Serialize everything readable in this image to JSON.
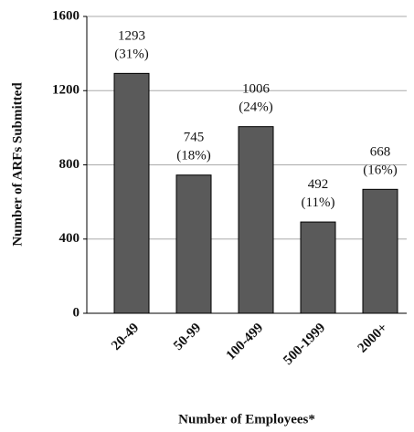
{
  "chart_data": {
    "type": "bar",
    "x_label": "Number of Employees*",
    "y_label": "Number of ARFs Submitted",
    "categories": [
      "20-49",
      "50-99",
      "100-499",
      "500-1999",
      "2000+"
    ],
    "values": [
      1293,
      745,
      1006,
      492,
      668
    ],
    "value_labels": [
      "1293 (31%)",
      "745 (18%)",
      "1006 (24%)",
      "492 (11%)",
      "668 (16%)"
    ],
    "color": "#5a5a5a",
    "ylim": [
      0,
      1600
    ],
    "yticks": [
      0,
      400,
      800,
      1200,
      1600
    ],
    "grid": true
  }
}
